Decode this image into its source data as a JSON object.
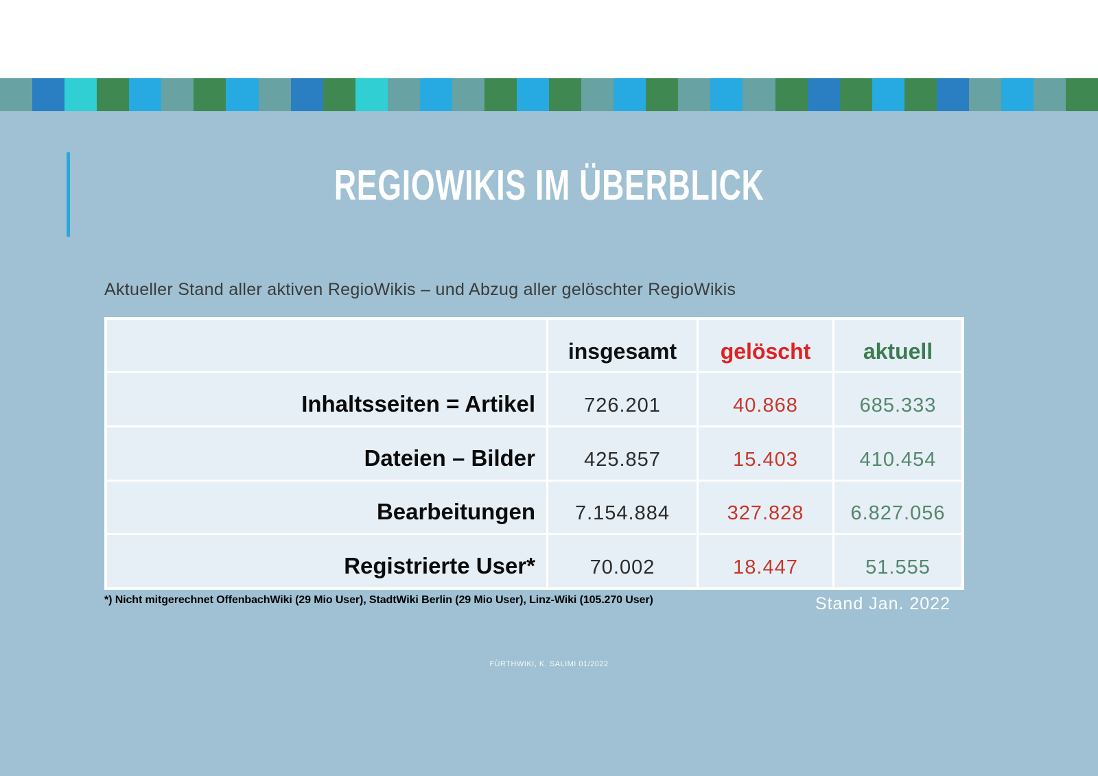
{
  "slide": {
    "title": "REGIOWIKIS IM ÜBERBLICK",
    "subtitle": "Aktueller Stand aller aktiven RegioWikis – und Abzug aller gelöschter RegioWikis",
    "footnote": "*) Nicht mitgerechnet OffenbachWiki (29 Mio User), StadtWiki Berlin (29 Mio User), Linz-Wiki (105.270 User)",
    "stand_label": "Stand Jan. 2022",
    "footer": "FÜRTHWIKI, K. SALIMI 01/2022"
  },
  "table": {
    "headers": [
      "insgesamt",
      "gelöscht",
      "aktuell"
    ],
    "rows": [
      {
        "label": "Inhaltsseiten = Artikel",
        "insgesamt": "726.201",
        "geloescht": "40.868",
        "aktuell": "685.333"
      },
      {
        "label": "Dateien – Bilder",
        "insgesamt": "425.857",
        "geloescht": "15.403",
        "aktuell": "410.454"
      },
      {
        "label": "Bearbeitungen",
        "insgesamt": "7.154.884",
        "geloescht": "327.828",
        "aktuell": "6.827.056"
      },
      {
        "label": "Registrierte User*",
        "insgesamt": "70.002",
        "geloescht": "18.447",
        "aktuell": "51.555"
      }
    ]
  },
  "palette": {
    "slide_background": "#9FC1D3",
    "table_cell_background": "#E6EFF6",
    "table_border": "#FFFFFF",
    "accent_line": "#2CA6DE",
    "header_red": "#E32020",
    "header_green": "#3C7C50",
    "value_red": "#C9362A",
    "value_green": "#54866B",
    "title_text": "#FFFFFF"
  },
  "stripe": {
    "colors": [
      "#68A2A2",
      "#2A7FC3",
      "#2FCFD4",
      "#408852",
      "#27AAE1",
      "#68A2A2",
      "#408852",
      "#27AAE1",
      "#68A2A2",
      "#2A7FC3",
      "#408852",
      "#2FCFD4",
      "#68A2A2",
      "#27AAE1",
      "#68A2A2",
      "#408852",
      "#27AAE1",
      "#408852",
      "#68A2A2",
      "#27AAE1",
      "#408852",
      "#68A2A2",
      "#27AAE1",
      "#68A2A2",
      "#408852",
      "#2A7FC3",
      "#408852",
      "#27AAE1",
      "#408852",
      "#2A7FC3",
      "#68A2A2",
      "#27AAE1",
      "#68A2A2",
      "#408852"
    ]
  }
}
